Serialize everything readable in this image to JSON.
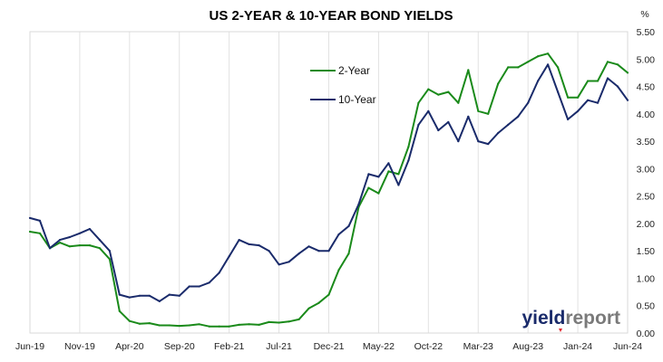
{
  "chart_data": {
    "type": "line",
    "title": "US 2-YEAR & 10-YEAR BOND YIELDS",
    "y_unit": "%",
    "ylim": [
      0,
      5.5
    ],
    "y_ticks": [
      "0.00",
      "0.50",
      "1.00",
      "1.50",
      "2.00",
      "2.50",
      "3.00",
      "3.50",
      "4.00",
      "4.50",
      "5.00",
      "5.50"
    ],
    "x_range": [
      "2019-06",
      "2024-06"
    ],
    "x_ticks": [
      {
        "label": "Jun-19",
        "date": "2019-06"
      },
      {
        "label": "Nov-19",
        "date": "2019-11"
      },
      {
        "label": "Apr-20",
        "date": "2020-04"
      },
      {
        "label": "Sep-20",
        "date": "2020-09"
      },
      {
        "label": "Feb-21",
        "date": "2021-02"
      },
      {
        "label": "Jul-21",
        "date": "2021-07"
      },
      {
        "label": "Dec-21",
        "date": "2021-12"
      },
      {
        "label": "May-22",
        "date": "2022-05"
      },
      {
        "label": "Oct-22",
        "date": "2022-10"
      },
      {
        "label": "Mar-23",
        "date": "2023-03"
      },
      {
        "label": "Aug-23",
        "date": "2023-08"
      },
      {
        "label": "Jan-24",
        "date": "2024-01"
      },
      {
        "label": "Jun-24",
        "date": "2024-06"
      }
    ],
    "grid": "vertical",
    "legend_position": "top-center",
    "series": [
      {
        "name": "2-Year",
        "color": "#1a8a1a",
        "points": [
          [
            "2019-06",
            1.85
          ],
          [
            "2019-07",
            1.82
          ],
          [
            "2019-08",
            1.55
          ],
          [
            "2019-09",
            1.65
          ],
          [
            "2019-10",
            1.58
          ],
          [
            "2019-11",
            1.6
          ],
          [
            "2019-12",
            1.6
          ],
          [
            "2020-01",
            1.55
          ],
          [
            "2020-02",
            1.35
          ],
          [
            "2020-03",
            0.4
          ],
          [
            "2020-04",
            0.22
          ],
          [
            "2020-05",
            0.17
          ],
          [
            "2020-06",
            0.18
          ],
          [
            "2020-07",
            0.14
          ],
          [
            "2020-08",
            0.14
          ],
          [
            "2020-09",
            0.13
          ],
          [
            "2020-10",
            0.14
          ],
          [
            "2020-11",
            0.16
          ],
          [
            "2020-12",
            0.12
          ],
          [
            "2021-01",
            0.12
          ],
          [
            "2021-02",
            0.12
          ],
          [
            "2021-03",
            0.15
          ],
          [
            "2021-04",
            0.16
          ],
          [
            "2021-05",
            0.15
          ],
          [
            "2021-06",
            0.2
          ],
          [
            "2021-07",
            0.19
          ],
          [
            "2021-08",
            0.21
          ],
          [
            "2021-09",
            0.25
          ],
          [
            "2021-10",
            0.45
          ],
          [
            "2021-11",
            0.55
          ],
          [
            "2021-12",
            0.7
          ],
          [
            "2022-01",
            1.15
          ],
          [
            "2022-02",
            1.45
          ],
          [
            "2022-03",
            2.3
          ],
          [
            "2022-04",
            2.65
          ],
          [
            "2022-05",
            2.55
          ],
          [
            "2022-06",
            2.95
          ],
          [
            "2022-07",
            2.9
          ],
          [
            "2022-08",
            3.4
          ],
          [
            "2022-09",
            4.2
          ],
          [
            "2022-10",
            4.45
          ],
          [
            "2022-11",
            4.35
          ],
          [
            "2022-12",
            4.4
          ],
          [
            "2023-01",
            4.2
          ],
          [
            "2023-02",
            4.8
          ],
          [
            "2023-03",
            4.05
          ],
          [
            "2023-04",
            4.0
          ],
          [
            "2023-05",
            4.55
          ],
          [
            "2023-06",
            4.85
          ],
          [
            "2023-07",
            4.85
          ],
          [
            "2023-08",
            4.95
          ],
          [
            "2023-09",
            5.05
          ],
          [
            "2023-10",
            5.1
          ],
          [
            "2023-11",
            4.85
          ],
          [
            "2023-12",
            4.3
          ],
          [
            "2024-01",
            4.3
          ],
          [
            "2024-02",
            4.6
          ],
          [
            "2024-03",
            4.6
          ],
          [
            "2024-04",
            4.95
          ],
          [
            "2024-05",
            4.9
          ],
          [
            "2024-06",
            4.75
          ]
        ]
      },
      {
        "name": "10-Year",
        "color": "#1a2b6b",
        "points": [
          [
            "2019-06",
            2.1
          ],
          [
            "2019-07",
            2.05
          ],
          [
            "2019-08",
            1.55
          ],
          [
            "2019-09",
            1.7
          ],
          [
            "2019-10",
            1.75
          ],
          [
            "2019-11",
            1.82
          ],
          [
            "2019-12",
            1.9
          ],
          [
            "2020-01",
            1.7
          ],
          [
            "2020-02",
            1.5
          ],
          [
            "2020-03",
            0.7
          ],
          [
            "2020-04",
            0.65
          ],
          [
            "2020-05",
            0.68
          ],
          [
            "2020-06",
            0.68
          ],
          [
            "2020-07",
            0.58
          ],
          [
            "2020-08",
            0.7
          ],
          [
            "2020-09",
            0.68
          ],
          [
            "2020-10",
            0.85
          ],
          [
            "2020-11",
            0.85
          ],
          [
            "2020-12",
            0.92
          ],
          [
            "2021-01",
            1.1
          ],
          [
            "2021-02",
            1.4
          ],
          [
            "2021-03",
            1.7
          ],
          [
            "2021-04",
            1.62
          ],
          [
            "2021-05",
            1.6
          ],
          [
            "2021-06",
            1.5
          ],
          [
            "2021-07",
            1.25
          ],
          [
            "2021-08",
            1.3
          ],
          [
            "2021-09",
            1.45
          ],
          [
            "2021-10",
            1.58
          ],
          [
            "2021-11",
            1.5
          ],
          [
            "2021-12",
            1.5
          ],
          [
            "2022-01",
            1.8
          ],
          [
            "2022-02",
            1.95
          ],
          [
            "2022-03",
            2.35
          ],
          [
            "2022-04",
            2.9
          ],
          [
            "2022-05",
            2.85
          ],
          [
            "2022-06",
            3.1
          ],
          [
            "2022-07",
            2.7
          ],
          [
            "2022-08",
            3.15
          ],
          [
            "2022-09",
            3.8
          ],
          [
            "2022-10",
            4.05
          ],
          [
            "2022-11",
            3.7
          ],
          [
            "2022-12",
            3.85
          ],
          [
            "2023-01",
            3.5
          ],
          [
            "2023-02",
            3.95
          ],
          [
            "2023-03",
            3.5
          ],
          [
            "2023-04",
            3.45
          ],
          [
            "2023-05",
            3.65
          ],
          [
            "2023-06",
            3.8
          ],
          [
            "2023-07",
            3.95
          ],
          [
            "2023-08",
            4.2
          ],
          [
            "2023-09",
            4.6
          ],
          [
            "2023-10",
            4.9
          ],
          [
            "2023-11",
            4.4
          ],
          [
            "2023-12",
            3.9
          ],
          [
            "2024-01",
            4.05
          ],
          [
            "2024-02",
            4.25
          ],
          [
            "2024-03",
            4.2
          ],
          [
            "2024-04",
            4.65
          ],
          [
            "2024-05",
            4.5
          ],
          [
            "2024-06",
            4.25
          ]
        ]
      }
    ]
  },
  "logo": {
    "part1": "yield",
    "part2": "report",
    "color1": "#1a2b6b",
    "color2": "#7a7a7a",
    "accent": "#e0262f"
  }
}
